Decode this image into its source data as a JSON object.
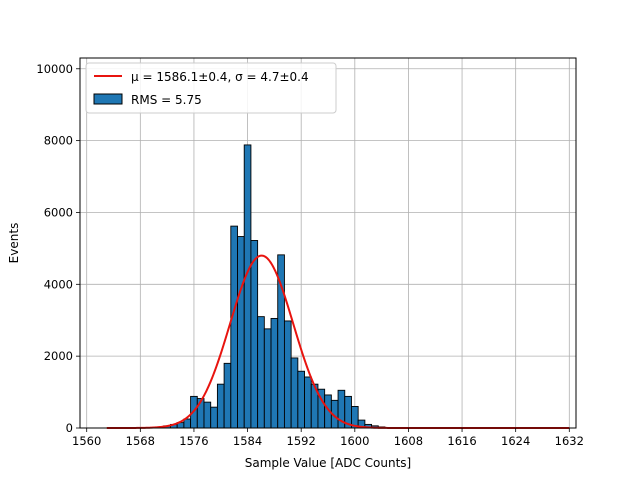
{
  "chart_data": {
    "type": "bar",
    "xlabel": "Sample Value [ADC Counts]",
    "ylabel": "Events",
    "xlim": [
      1559,
      1633
    ],
    "ylim": [
      0,
      10300
    ],
    "xticks": [
      1560,
      1568,
      1576,
      1584,
      1592,
      1600,
      1608,
      1616,
      1624,
      1632
    ],
    "yticks": [
      0,
      2000,
      4000,
      6000,
      8000,
      10000
    ],
    "grid": true,
    "legend_position": "top-left",
    "histogram": {
      "name": "RMS = 5.75",
      "color": "#1f77b4",
      "bin_width": 1,
      "bins": [
        {
          "x": 1568,
          "value": 5
        },
        {
          "x": 1569,
          "value": 10
        },
        {
          "x": 1570,
          "value": 15
        },
        {
          "x": 1571,
          "value": 30
        },
        {
          "x": 1572,
          "value": 60
        },
        {
          "x": 1573,
          "value": 100
        },
        {
          "x": 1574,
          "value": 150
        },
        {
          "x": 1575,
          "value": 250
        },
        {
          "x": 1576,
          "value": 880
        },
        {
          "x": 1577,
          "value": 820
        },
        {
          "x": 1578,
          "value": 720
        },
        {
          "x": 1579,
          "value": 580
        },
        {
          "x": 1580,
          "value": 1220
        },
        {
          "x": 1581,
          "value": 1800
        },
        {
          "x": 1582,
          "value": 5620
        },
        {
          "x": 1583,
          "value": 5330
        },
        {
          "x": 1584,
          "value": 7880
        },
        {
          "x": 1585,
          "value": 5220
        },
        {
          "x": 1586,
          "value": 3100
        },
        {
          "x": 1587,
          "value": 2760
        },
        {
          "x": 1588,
          "value": 3050
        },
        {
          "x": 1589,
          "value": 4820
        },
        {
          "x": 1590,
          "value": 2980
        },
        {
          "x": 1591,
          "value": 1950
        },
        {
          "x": 1592,
          "value": 1580
        },
        {
          "x": 1593,
          "value": 1420
        },
        {
          "x": 1594,
          "value": 1220
        },
        {
          "x": 1595,
          "value": 1080
        },
        {
          "x": 1596,
          "value": 920
        },
        {
          "x": 1597,
          "value": 770
        },
        {
          "x": 1598,
          "value": 1050
        },
        {
          "x": 1599,
          "value": 880
        },
        {
          "x": 1600,
          "value": 600
        },
        {
          "x": 1601,
          "value": 220
        },
        {
          "x": 1602,
          "value": 100
        },
        {
          "x": 1603,
          "value": 60
        },
        {
          "x": 1604,
          "value": 30
        },
        {
          "x": 1605,
          "value": 10
        }
      ]
    },
    "fit": {
      "name": "μ = 1586.1±0.4, σ = 4.7±0.4",
      "color": "#e8140f",
      "type": "gaussian",
      "amplitude": 4800,
      "mean": 1586.1,
      "sigma": 4.7,
      "x_range": [
        1563,
        1632
      ]
    }
  }
}
